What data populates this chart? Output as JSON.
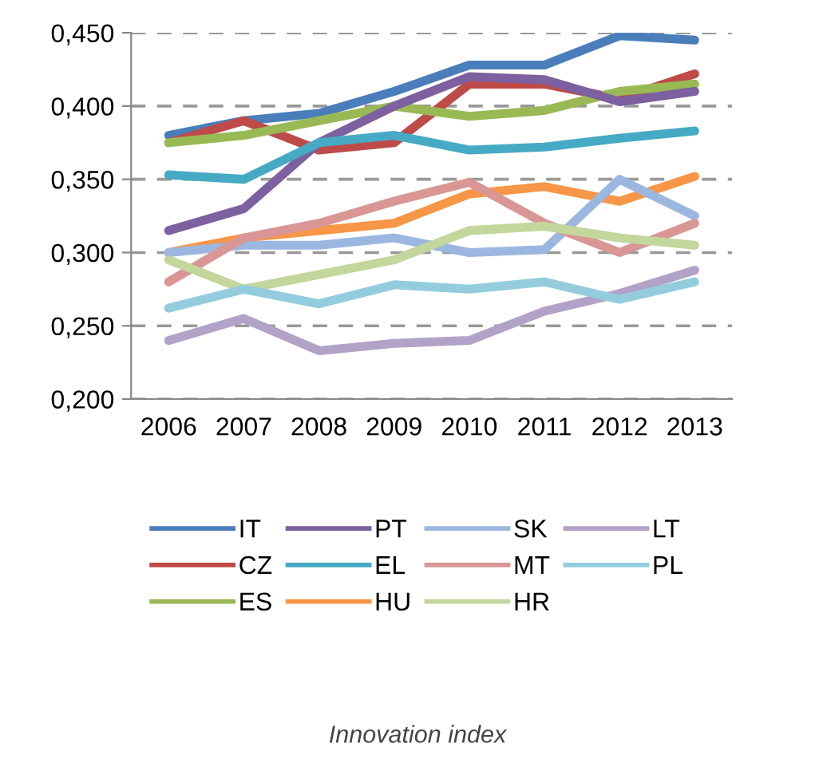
{
  "chart_data": {
    "type": "line",
    "categories": [
      "2006",
      "2007",
      "2008",
      "2009",
      "2010",
      "2011",
      "2012",
      "2013"
    ],
    "series": [
      {
        "name": "IT",
        "color": "#4a7ebb",
        "values": [
          0.38,
          0.39,
          0.395,
          0.41,
          0.428,
          0.428,
          0.448,
          0.445
        ]
      },
      {
        "name": "CZ",
        "color": "#be4b48",
        "values": [
          0.375,
          0.39,
          0.37,
          0.375,
          0.415,
          0.415,
          0.405,
          0.422
        ]
      },
      {
        "name": "ES",
        "color": "#98b954",
        "values": [
          0.375,
          0.38,
          0.39,
          0.4,
          0.393,
          0.397,
          0.41,
          0.415
        ]
      },
      {
        "name": "PT",
        "color": "#7d60a0",
        "values": [
          0.315,
          0.33,
          0.375,
          0.4,
          0.42,
          0.418,
          0.403,
          0.41
        ]
      },
      {
        "name": "EL",
        "color": "#46aac5",
        "values": [
          0.353,
          0.35,
          0.375,
          0.38,
          0.37,
          0.372,
          0.378,
          0.383
        ]
      },
      {
        "name": "HU",
        "color": "#f79646",
        "values": [
          0.3,
          0.31,
          0.315,
          0.32,
          0.34,
          0.345,
          0.335,
          0.352
        ]
      },
      {
        "name": "SK",
        "color": "#9bb7e0",
        "values": [
          0.3,
          0.305,
          0.305,
          0.31,
          0.3,
          0.302,
          0.35,
          0.325
        ]
      },
      {
        "name": "MT",
        "color": "#d99694",
        "values": [
          0.28,
          0.31,
          0.32,
          0.335,
          0.348,
          0.32,
          0.3,
          0.32
        ]
      },
      {
        "name": "HR",
        "color": "#c3d69b",
        "values": [
          0.295,
          0.275,
          0.285,
          0.295,
          0.315,
          0.318,
          0.31,
          0.305
        ]
      },
      {
        "name": "LT",
        "color": "#b3a2c7",
        "values": [
          0.24,
          0.255,
          0.233,
          0.238,
          0.24,
          0.26,
          0.272,
          0.288
        ]
      },
      {
        "name": "PL",
        "color": "#93cddd",
        "values": [
          0.262,
          0.275,
          0.265,
          0.278,
          0.275,
          0.28,
          0.268,
          0.28
        ]
      }
    ],
    "ylim": [
      0.2,
      0.45
    ],
    "yticks": [
      {
        "value": 0.2,
        "label": "0,200"
      },
      {
        "value": 0.25,
        "label": "0,250"
      },
      {
        "value": 0.3,
        "label": "0,300"
      },
      {
        "value": 0.35,
        "label": "0,350"
      },
      {
        "value": 0.4,
        "label": "0,400"
      },
      {
        "value": 0.45,
        "label": "0,450"
      }
    ],
    "grid": "y",
    "legend": "bottom",
    "marker": "none",
    "line_style": "solid",
    "annotations": [
      "Innovation index"
    ]
  }
}
